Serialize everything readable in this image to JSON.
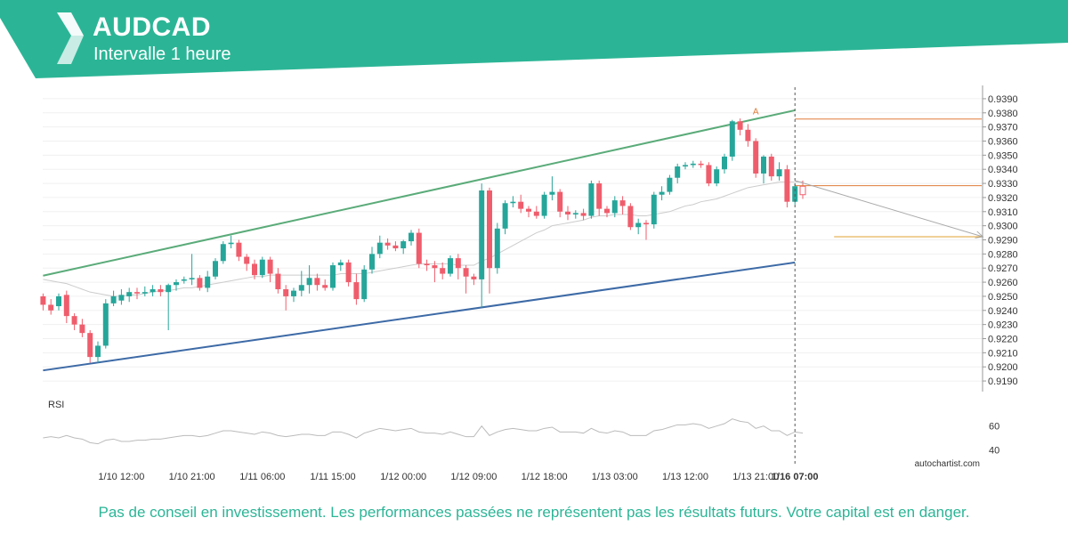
{
  "header": {
    "symbol": "AUDCAD",
    "interval": "Intervalle 1 heure",
    "background_color": "#2bb596",
    "logo_icon": "autochartist-logo-icon"
  },
  "disclaimer": "Pas de conseil en investissement. Les performances passées ne représentent pas les résultats futurs. Votre capital est en danger.",
  "watermark": "autochartist.com",
  "chart_data": {
    "type": "candlestick",
    "symbol": "AUDCAD",
    "timeframe": "1 heure",
    "y_ticks": [
      "0.9390",
      "0.9380",
      "0.9370",
      "0.9360",
      "0.9350",
      "0.9340",
      "0.9330",
      "0.9320",
      "0.9310",
      "0.9300",
      "0.9290",
      "0.9280",
      "0.9270",
      "0.9260",
      "0.9250",
      "0.9240",
      "0.9230",
      "0.9220",
      "0.9210",
      "0.9200",
      "0.9190"
    ],
    "ylim": [
      0.9185,
      0.9395
    ],
    "x_tick_labels": [
      "1/10 12:00",
      "1/10 21:00",
      "1/11 06:00",
      "1/11 15:00",
      "1/12 00:00",
      "1/12 09:00",
      "1/12 18:00",
      "1/13 03:00",
      "1/13 12:00",
      "1/13 21:00",
      "1/16 07:00"
    ],
    "x_tick_bar_index": [
      10,
      19,
      28,
      37,
      46,
      55,
      64,
      73,
      82,
      91,
      96
    ],
    "candles": [
      {
        "o": 0.925,
        "h": 0.9252,
        "l": 0.924,
        "c": 0.9244
      },
      {
        "o": 0.9244,
        "h": 0.9248,
        "l": 0.9237,
        "c": 0.924
      },
      {
        "o": 0.9243,
        "h": 0.9252,
        "l": 0.924,
        "c": 0.925
      },
      {
        "o": 0.9251,
        "h": 0.9254,
        "l": 0.9231,
        "c": 0.9236
      },
      {
        "o": 0.9236,
        "h": 0.9238,
        "l": 0.9226,
        "c": 0.923
      },
      {
        "o": 0.923,
        "h": 0.9234,
        "l": 0.9221,
        "c": 0.9224
      },
      {
        "o": 0.9224,
        "h": 0.9226,
        "l": 0.9203,
        "c": 0.9207
      },
      {
        "o": 0.9207,
        "h": 0.9218,
        "l": 0.9203,
        "c": 0.9215
      },
      {
        "o": 0.9215,
        "h": 0.9248,
        "l": 0.9213,
        "c": 0.9245
      },
      {
        "o": 0.9245,
        "h": 0.9254,
        "l": 0.9243,
        "c": 0.925
      },
      {
        "o": 0.9247,
        "h": 0.9255,
        "l": 0.9244,
        "c": 0.9251
      },
      {
        "o": 0.925,
        "h": 0.9256,
        "l": 0.9246,
        "c": 0.9253
      },
      {
        "o": 0.9253,
        "h": 0.9256,
        "l": 0.9248,
        "c": 0.9252
      },
      {
        "o": 0.9252,
        "h": 0.9257,
        "l": 0.925,
        "c": 0.9253
      },
      {
        "o": 0.9253,
        "h": 0.9258,
        "l": 0.925,
        "c": 0.9255
      },
      {
        "o": 0.9255,
        "h": 0.9258,
        "l": 0.925,
        "c": 0.9253
      },
      {
        "o": 0.9253,
        "h": 0.9259,
        "l": 0.9226,
        "c": 0.9258
      },
      {
        "o": 0.9258,
        "h": 0.9262,
        "l": 0.9254,
        "c": 0.926
      },
      {
        "o": 0.9261,
        "h": 0.9264,
        "l": 0.9259,
        "c": 0.9262
      },
      {
        "o": 0.9262,
        "h": 0.928,
        "l": 0.9258,
        "c": 0.9263
      },
      {
        "o": 0.9263,
        "h": 0.9265,
        "l": 0.9254,
        "c": 0.9256
      },
      {
        "o": 0.9256,
        "h": 0.9268,
        "l": 0.9253,
        "c": 0.9264
      },
      {
        "o": 0.9264,
        "h": 0.9277,
        "l": 0.9262,
        "c": 0.9275
      },
      {
        "o": 0.9275,
        "h": 0.9289,
        "l": 0.9273,
        "c": 0.9287
      },
      {
        "o": 0.9287,
        "h": 0.9293,
        "l": 0.9284,
        "c": 0.9288
      },
      {
        "o": 0.9288,
        "h": 0.929,
        "l": 0.9275,
        "c": 0.9278
      },
      {
        "o": 0.9278,
        "h": 0.928,
        "l": 0.9268,
        "c": 0.9273
      },
      {
        "o": 0.9273,
        "h": 0.9276,
        "l": 0.9262,
        "c": 0.9265
      },
      {
        "o": 0.9265,
        "h": 0.9278,
        "l": 0.9263,
        "c": 0.9276
      },
      {
        "o": 0.9276,
        "h": 0.9278,
        "l": 0.926,
        "c": 0.9266
      },
      {
        "o": 0.9266,
        "h": 0.927,
        "l": 0.9252,
        "c": 0.9255
      },
      {
        "o": 0.9255,
        "h": 0.9258,
        "l": 0.924,
        "c": 0.925
      },
      {
        "o": 0.925,
        "h": 0.9256,
        "l": 0.9246,
        "c": 0.9254
      },
      {
        "o": 0.9254,
        "h": 0.9268,
        "l": 0.925,
        "c": 0.9258
      },
      {
        "o": 0.9258,
        "h": 0.9272,
        "l": 0.9252,
        "c": 0.9263
      },
      {
        "o": 0.9263,
        "h": 0.9266,
        "l": 0.9254,
        "c": 0.9258
      },
      {
        "o": 0.9258,
        "h": 0.9262,
        "l": 0.9254,
        "c": 0.9256
      },
      {
        "o": 0.9256,
        "h": 0.9274,
        "l": 0.9254,
        "c": 0.9272
      },
      {
        "o": 0.9272,
        "h": 0.9276,
        "l": 0.9268,
        "c": 0.9274
      },
      {
        "o": 0.9274,
        "h": 0.9276,
        "l": 0.9257,
        "c": 0.926
      },
      {
        "o": 0.926,
        "h": 0.9266,
        "l": 0.9244,
        "c": 0.9248
      },
      {
        "o": 0.9248,
        "h": 0.9272,
        "l": 0.9246,
        "c": 0.9269
      },
      {
        "o": 0.9269,
        "h": 0.9285,
        "l": 0.9266,
        "c": 0.928
      },
      {
        "o": 0.928,
        "h": 0.9293,
        "l": 0.9277,
        "c": 0.9288
      },
      {
        "o": 0.9288,
        "h": 0.9291,
        "l": 0.9283,
        "c": 0.9286
      },
      {
        "o": 0.9286,
        "h": 0.9289,
        "l": 0.9282,
        "c": 0.9284
      },
      {
        "o": 0.9284,
        "h": 0.929,
        "l": 0.928,
        "c": 0.9289
      },
      {
        "o": 0.9289,
        "h": 0.9297,
        "l": 0.9286,
        "c": 0.9295
      },
      {
        "o": 0.9295,
        "h": 0.9298,
        "l": 0.927,
        "c": 0.9273
      },
      {
        "o": 0.9273,
        "h": 0.9276,
        "l": 0.9268,
        "c": 0.9272
      },
      {
        "o": 0.9272,
        "h": 0.9275,
        "l": 0.926,
        "c": 0.927
      },
      {
        "o": 0.927,
        "h": 0.9274,
        "l": 0.9262,
        "c": 0.9266
      },
      {
        "o": 0.9266,
        "h": 0.9279,
        "l": 0.9264,
        "c": 0.9277
      },
      {
        "o": 0.9277,
        "h": 0.928,
        "l": 0.9262,
        "c": 0.927
      },
      {
        "o": 0.927,
        "h": 0.9272,
        "l": 0.9252,
        "c": 0.9264
      },
      {
        "o": 0.9264,
        "h": 0.9266,
        "l": 0.9258,
        "c": 0.9262
      },
      {
        "o": 0.9262,
        "h": 0.933,
        "l": 0.9242,
        "c": 0.9325
      },
      {
        "o": 0.9325,
        "h": 0.9327,
        "l": 0.9252,
        "c": 0.927
      },
      {
        "o": 0.927,
        "h": 0.9302,
        "l": 0.9266,
        "c": 0.9298
      },
      {
        "o": 0.9298,
        "h": 0.9318,
        "l": 0.9294,
        "c": 0.9316
      },
      {
        "o": 0.9316,
        "h": 0.9321,
        "l": 0.9313,
        "c": 0.9317
      },
      {
        "o": 0.9317,
        "h": 0.9322,
        "l": 0.9309,
        "c": 0.9312
      },
      {
        "o": 0.9312,
        "h": 0.9314,
        "l": 0.9306,
        "c": 0.931
      },
      {
        "o": 0.931,
        "h": 0.9314,
        "l": 0.9305,
        "c": 0.9307
      },
      {
        "o": 0.9307,
        "h": 0.9324,
        "l": 0.9305,
        "c": 0.9322
      },
      {
        "o": 0.9322,
        "h": 0.9335,
        "l": 0.9318,
        "c": 0.9324
      },
      {
        "o": 0.9324,
        "h": 0.9326,
        "l": 0.9306,
        "c": 0.931
      },
      {
        "o": 0.931,
        "h": 0.9314,
        "l": 0.9304,
        "c": 0.9308
      },
      {
        "o": 0.9308,
        "h": 0.9311,
        "l": 0.9305,
        "c": 0.9309
      },
      {
        "o": 0.9309,
        "h": 0.9312,
        "l": 0.9304,
        "c": 0.9307
      },
      {
        "o": 0.9307,
        "h": 0.9332,
        "l": 0.9305,
        "c": 0.933
      },
      {
        "o": 0.933,
        "h": 0.9332,
        "l": 0.9307,
        "c": 0.9312
      },
      {
        "o": 0.9312,
        "h": 0.9314,
        "l": 0.9306,
        "c": 0.9309
      },
      {
        "o": 0.9309,
        "h": 0.9321,
        "l": 0.9306,
        "c": 0.9318
      },
      {
        "o": 0.9318,
        "h": 0.9321,
        "l": 0.9308,
        "c": 0.9314
      },
      {
        "o": 0.9314,
        "h": 0.9316,
        "l": 0.9297,
        "c": 0.9299
      },
      {
        "o": 0.9299,
        "h": 0.9305,
        "l": 0.9294,
        "c": 0.9302
      },
      {
        "o": 0.9302,
        "h": 0.9304,
        "l": 0.929,
        "c": 0.9301
      },
      {
        "o": 0.9301,
        "h": 0.9324,
        "l": 0.9298,
        "c": 0.9322
      },
      {
        "o": 0.9322,
        "h": 0.9328,
        "l": 0.9318,
        "c": 0.9324
      },
      {
        "o": 0.9324,
        "h": 0.9336,
        "l": 0.9322,
        "c": 0.9334
      },
      {
        "o": 0.9334,
        "h": 0.9344,
        "l": 0.933,
        "c": 0.9342
      },
      {
        "o": 0.9342,
        "h": 0.9345,
        "l": 0.934,
        "c": 0.9343
      },
      {
        "o": 0.9343,
        "h": 0.9346,
        "l": 0.9341,
        "c": 0.9344
      },
      {
        "o": 0.9344,
        "h": 0.9346,
        "l": 0.9341,
        "c": 0.9343
      },
      {
        "o": 0.9343,
        "h": 0.9345,
        "l": 0.9328,
        "c": 0.933
      },
      {
        "o": 0.933,
        "h": 0.9342,
        "l": 0.9328,
        "c": 0.934
      },
      {
        "o": 0.934,
        "h": 0.9351,
        "l": 0.9337,
        "c": 0.9349
      },
      {
        "o": 0.9349,
        "h": 0.9375,
        "l": 0.9346,
        "c": 0.9374
      },
      {
        "o": 0.9374,
        "h": 0.9376,
        "l": 0.9364,
        "c": 0.9368
      },
      {
        "o": 0.9368,
        "h": 0.9372,
        "l": 0.9356,
        "c": 0.936
      },
      {
        "o": 0.936,
        "h": 0.9362,
        "l": 0.9334,
        "c": 0.9337
      },
      {
        "o": 0.9337,
        "h": 0.935,
        "l": 0.933,
        "c": 0.9349
      },
      {
        "o": 0.9349,
        "h": 0.9351,
        "l": 0.9332,
        "c": 0.9335
      },
      {
        "o": 0.9335,
        "h": 0.9345,
        "l": 0.9332,
        "c": 0.934
      },
      {
        "o": 0.934,
        "h": 0.9343,
        "l": 0.9313,
        "c": 0.9317
      },
      {
        "o": 0.9317,
        "h": 0.933,
        "l": 0.9315,
        "c": 0.9328
      },
      {
        "o": 0.9328,
        "h": 0.9332,
        "l": 0.9319,
        "c": 0.9322
      }
    ],
    "moving_average": [
      0.9262,
      0.9261,
      0.926,
      0.9259,
      0.9257,
      0.9255,
      0.9253,
      0.9252,
      0.9251,
      0.925,
      0.925,
      0.9251,
      0.9251,
      0.9252,
      0.9253,
      0.9254,
      0.9254,
      0.9255,
      0.9256,
      0.9256,
      0.9257,
      0.9258,
      0.9259,
      0.926,
      0.9261,
      0.9262,
      0.9263,
      0.9264,
      0.9264,
      0.9265,
      0.9265,
      0.9265,
      0.9265,
      0.9265,
      0.9265,
      0.9265,
      0.9265,
      0.9265,
      0.9266,
      0.9266,
      0.9266,
      0.9266,
      0.9267,
      0.9268,
      0.9269,
      0.927,
      0.9271,
      0.9272,
      0.9273,
      0.9273,
      0.9273,
      0.9273,
      0.9273,
      0.9272,
      0.9272,
      0.9272,
      0.9275,
      0.9277,
      0.928,
      0.9283,
      0.9286,
      0.9289,
      0.9292,
      0.9295,
      0.9297,
      0.93,
      0.9301,
      0.9302,
      0.9303,
      0.9304,
      0.9306,
      0.9307,
      0.9307,
      0.9308,
      0.9308,
      0.9308,
      0.9307,
      0.9307,
      0.9308,
      0.9309,
      0.931,
      0.9312,
      0.9314,
      0.9315,
      0.9317,
      0.9318,
      0.9319,
      0.9321,
      0.9323,
      0.9325,
      0.9327,
      0.9328,
      0.9329,
      0.933,
      0.9331,
      0.9331,
      0.9331,
      0.9331
    ],
    "channel": {
      "upper": {
        "from": {
          "bar": 0,
          "price": 0.92646
        },
        "to": {
          "bar": 96,
          "price": 0.93818
        },
        "color": "#5aab79"
      },
      "lower": {
        "from": {
          "bar": 0,
          "price": 0.91975
        },
        "to": {
          "bar": 96,
          "price": 0.9274
        },
        "color": "#3d6aa6"
      }
    },
    "levels": [
      {
        "price": 0.93756,
        "from_bar": 96,
        "color": "#e07b39"
      },
      {
        "price": 0.93284,
        "from_bar": 96,
        "color": "#e07b39"
      },
      {
        "price": 0.92922,
        "from_bar": 101,
        "color": "#e0a030"
      }
    ],
    "projection": {
      "from": {
        "bar": 96,
        "price": 0.9332
      },
      "to": {
        "bar": 120,
        "price": 0.92922
      },
      "color": "#aaaaaa"
    },
    "point_label": {
      "text": "A",
      "bar": 91,
      "price": 0.9379,
      "color": "#e07b39"
    },
    "current_bar_index": 96,
    "rsi": {
      "label": "RSI",
      "ticks": [
        "60",
        "40"
      ],
      "ylim": [
        32,
        74
      ],
      "values": [
        50,
        51,
        50,
        52,
        50,
        49,
        46,
        45,
        48,
        49,
        47,
        47,
        48,
        48,
        49,
        49,
        50,
        51,
        52,
        52,
        51,
        52,
        54,
        56,
        56,
        55,
        54,
        53,
        55,
        54,
        52,
        51,
        52,
        53,
        53,
        52,
        52,
        55,
        55,
        53,
        50,
        54,
        56,
        58,
        57,
        56,
        57,
        58,
        55,
        54,
        54,
        53,
        55,
        53,
        51,
        51,
        60,
        52,
        55,
        57,
        58,
        57,
        56,
        56,
        58,
        59,
        55,
        55,
        55,
        54,
        58,
        55,
        54,
        56,
        55,
        52,
        52,
        52,
        56,
        57,
        59,
        61,
        61,
        62,
        61,
        58,
        60,
        62,
        66,
        64,
        63,
        58,
        60,
        56,
        56,
        52,
        55,
        54
      ],
      "color": "#bbbbbb"
    }
  }
}
